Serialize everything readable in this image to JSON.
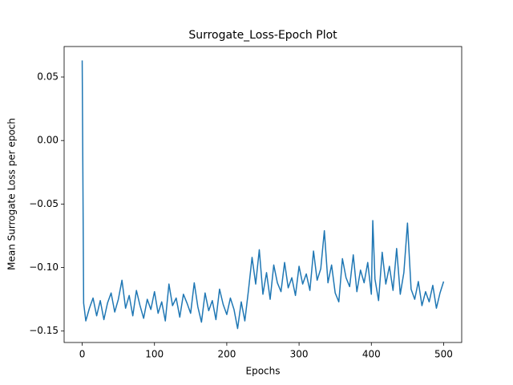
{
  "chart_data": {
    "type": "line",
    "title": "Surrogate_Loss-Epoch Plot",
    "x_label": "Epochs",
    "y_label": "Mean Surrogate Loss per epoch",
    "x": [
      0,
      2,
      5,
      10,
      15,
      20,
      25,
      30,
      35,
      40,
      45,
      50,
      55,
      60,
      65,
      70,
      75,
      80,
      85,
      90,
      95,
      100,
      105,
      110,
      115,
      120,
      125,
      130,
      135,
      140,
      145,
      150,
      155,
      160,
      165,
      170,
      175,
      180,
      185,
      190,
      195,
      200,
      205,
      210,
      215,
      220,
      225,
      230,
      235,
      240,
      245,
      250,
      255,
      260,
      265,
      270,
      275,
      280,
      285,
      290,
      295,
      300,
      305,
      310,
      315,
      320,
      325,
      330,
      335,
      340,
      345,
      350,
      355,
      360,
      365,
      370,
      375,
      380,
      385,
      390,
      395,
      400,
      402,
      405,
      410,
      415,
      420,
      425,
      430,
      435,
      440,
      445,
      450,
      455,
      460,
      465,
      470,
      475,
      480,
      485,
      490,
      495,
      500
    ],
    "series": [
      {
        "name": "Surrogate Loss",
        "color": "#1f77b4",
        "values": [
          0.063,
          -0.128,
          -0.142,
          -0.132,
          -0.124,
          -0.138,
          -0.126,
          -0.141,
          -0.128,
          -0.12,
          -0.135,
          -0.125,
          -0.11,
          -0.132,
          -0.122,
          -0.138,
          -0.118,
          -0.13,
          -0.14,
          -0.125,
          -0.133,
          -0.119,
          -0.136,
          -0.127,
          -0.142,
          -0.113,
          -0.13,
          -0.124,
          -0.139,
          -0.121,
          -0.128,
          -0.136,
          -0.112,
          -0.131,
          -0.143,
          -0.12,
          -0.134,
          -0.126,
          -0.141,
          -0.117,
          -0.129,
          -0.137,
          -0.124,
          -0.133,
          -0.148,
          -0.127,
          -0.142,
          -0.118,
          -0.092,
          -0.113,
          -0.086,
          -0.121,
          -0.104,
          -0.125,
          -0.098,
          -0.112,
          -0.119,
          -0.096,
          -0.116,
          -0.108,
          -0.122,
          -0.099,
          -0.113,
          -0.105,
          -0.118,
          -0.087,
          -0.11,
          -0.101,
          -0.071,
          -0.112,
          -0.098,
          -0.12,
          -0.127,
          -0.093,
          -0.108,
          -0.115,
          -0.09,
          -0.119,
          -0.102,
          -0.112,
          -0.096,
          -0.121,
          -0.063,
          -0.109,
          -0.126,
          -0.088,
          -0.113,
          -0.099,
          -0.118,
          -0.085,
          -0.121,
          -0.104,
          -0.065,
          -0.117,
          -0.125,
          -0.111,
          -0.13,
          -0.119,
          -0.127,
          -0.114,
          -0.132,
          -0.12,
          -0.111
        ]
      }
    ],
    "xlim": [
      -25,
      525
    ],
    "xticks": [
      0,
      100,
      200,
      300,
      400,
      500
    ],
    "ylim": [
      -0.159,
      0.074
    ],
    "yticks": [
      {
        "value": -0.15,
        "label": "−0.15"
      },
      {
        "value": -0.1,
        "label": "−0.10"
      },
      {
        "value": -0.05,
        "label": "−0.05"
      },
      {
        "value": 0,
        "label": "0.00"
      },
      {
        "value": 0.05,
        "label": "0.05"
      }
    ],
    "grid": false
  }
}
